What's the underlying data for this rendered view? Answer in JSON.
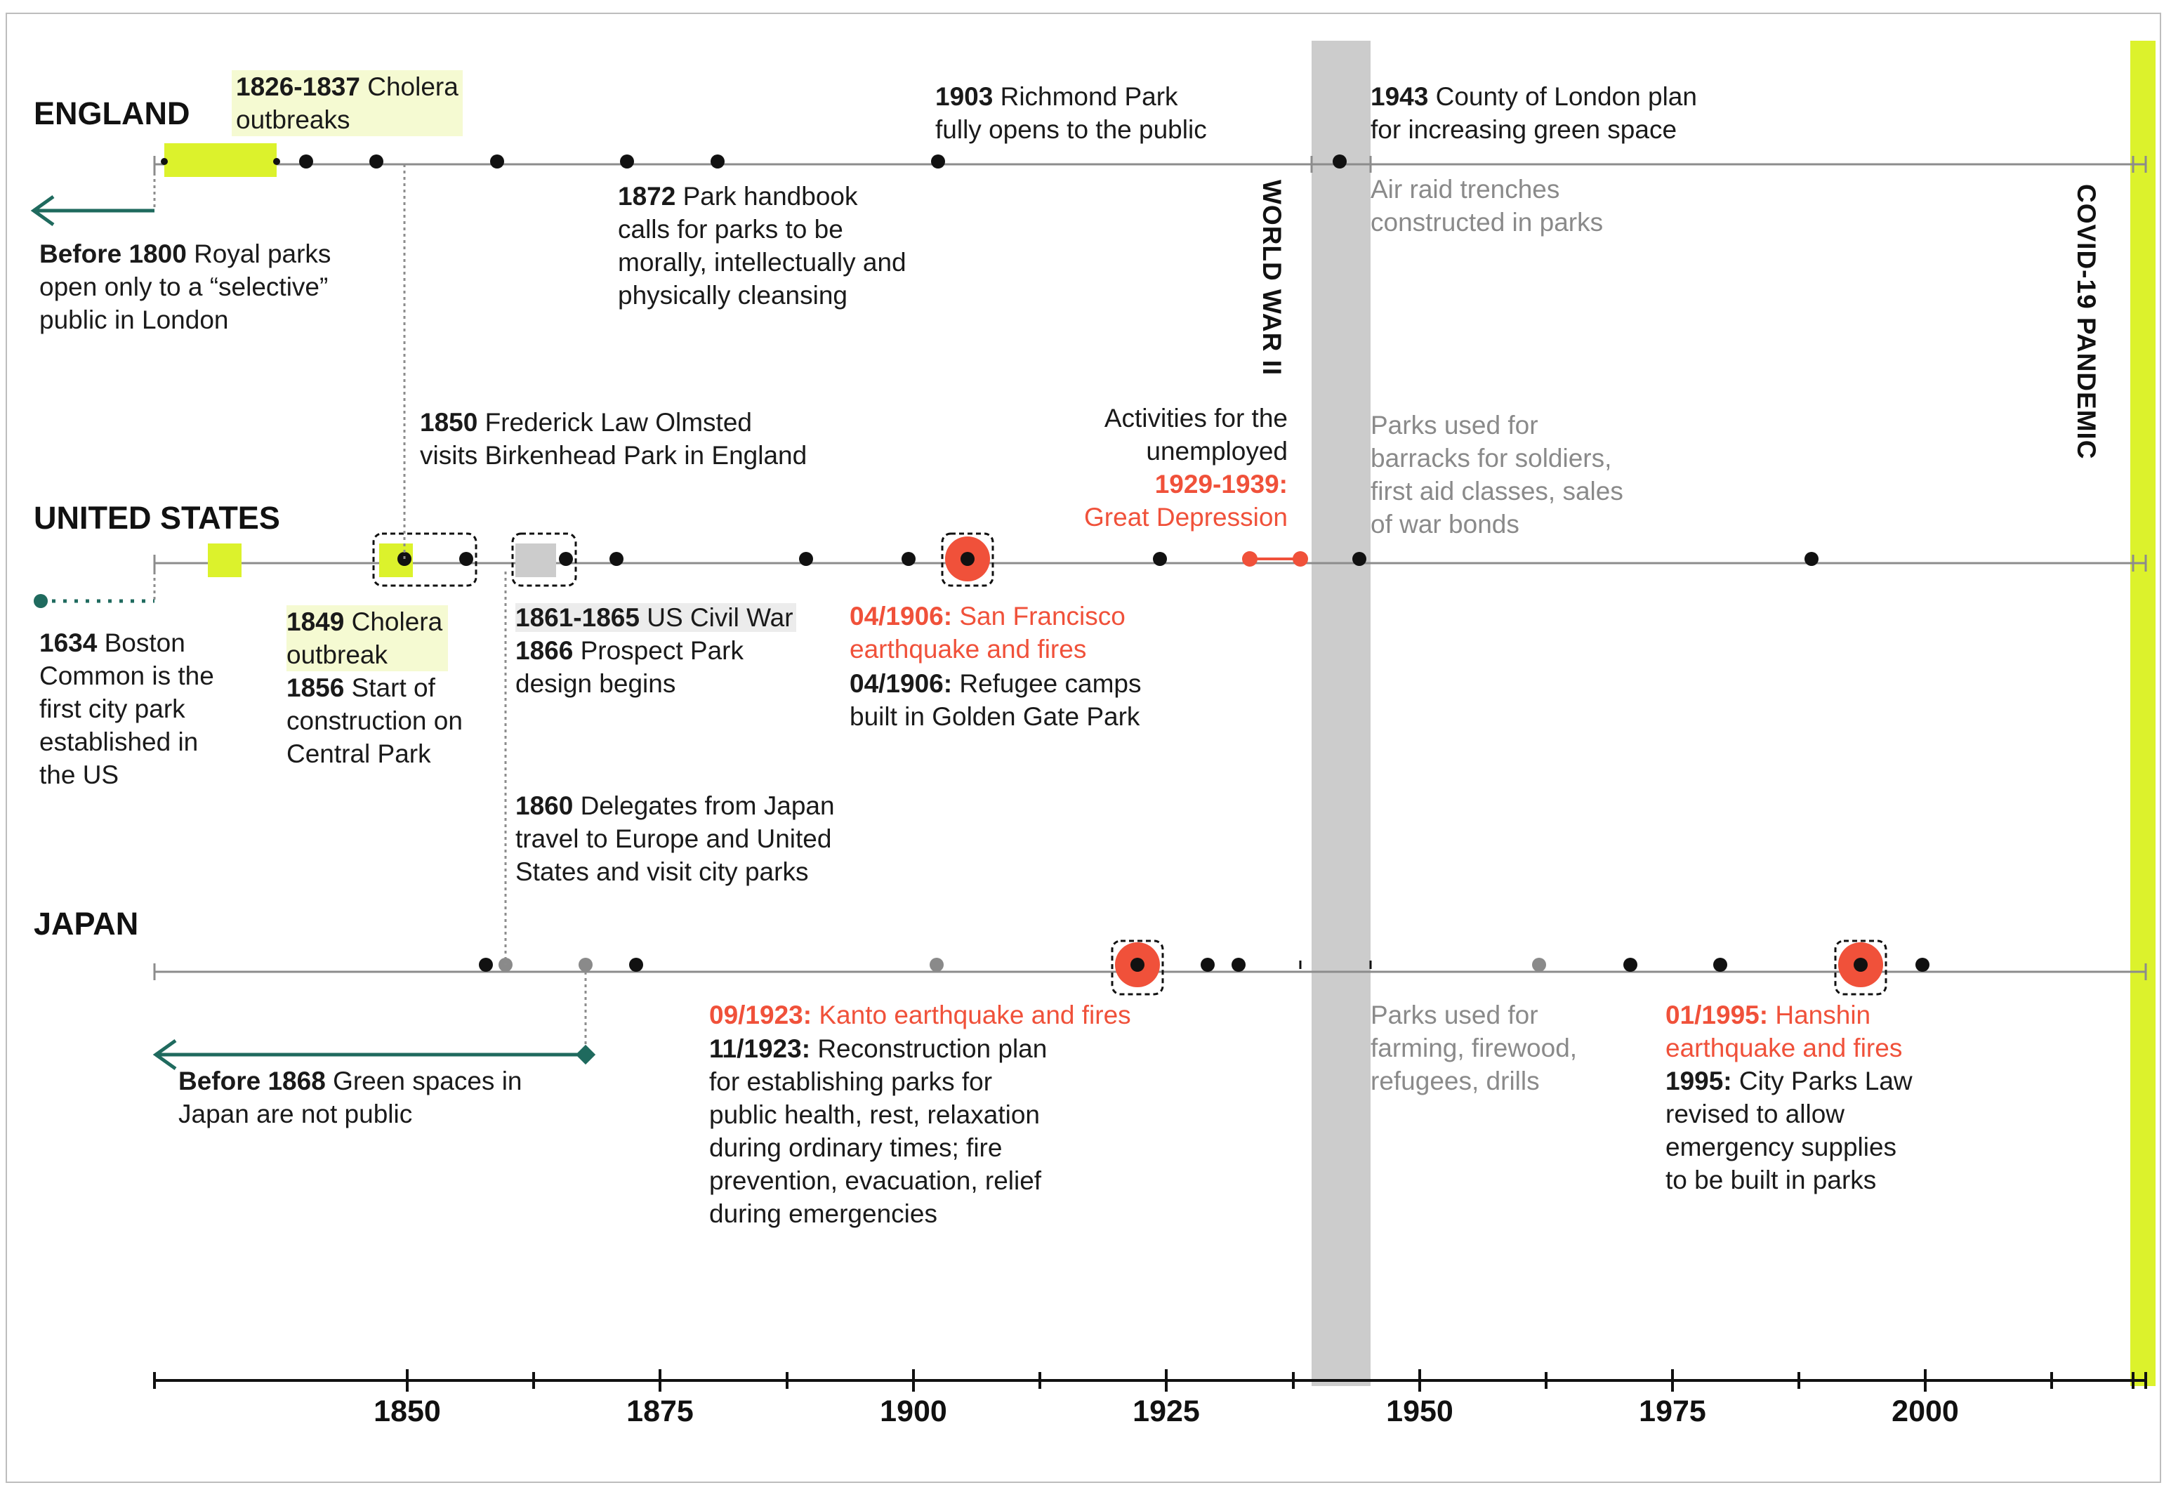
{
  "countries": [
    "ENGLAND",
    "UNITED STATES",
    "JAPAN"
  ],
  "axis": {
    "ticks": [
      "1850",
      "1875",
      "1900",
      "1925",
      "1950",
      "1975",
      "2000"
    ]
  },
  "periods": {
    "ww2": "WORLD WAR II",
    "covid": "COVID-19 PANDEMIC"
  },
  "england": [
    {
      "id": "cholera",
      "year": "1826-1837",
      "text": "Cholera\noutbreaks"
    },
    {
      "id": "before1800",
      "year": "Before 1800",
      "text": "Royal parks\nopen only to a “selective”\npublic in London"
    },
    {
      "id": "richmond",
      "year": "1903",
      "text": "Richmond Park\nfully opens to the public"
    },
    {
      "id": "handbook",
      "year": "1872",
      "text": "Park handbook\ncalls for parks to be\nmorally, intellectually and\nphysically cleansing"
    },
    {
      "id": "london-plan",
      "year": "1943",
      "text": "County of London plan\nfor increasing green space"
    },
    {
      "id": "air-raid",
      "year": "",
      "text": "Air raid trenches\nconstructed in parks"
    }
  ],
  "usa": [
    {
      "id": "olmsted",
      "year": "1850",
      "text": "Frederick Law Olmsted\nvisits Birkenhead Park in England"
    },
    {
      "id": "unemployed",
      "year": "",
      "text": "Activities for the\nunemployed"
    },
    {
      "id": "depression",
      "year": "1929-1939:",
      "text": "Great Depression"
    },
    {
      "id": "barracks",
      "year": "",
      "text": "Parks used for\nbarracks for soldiers,\nfirst aid classes, sales\nof war bonds"
    },
    {
      "id": "boston",
      "year": "1634",
      "text": "Boston\nCommon is the\nfirst city park\nestablished in\nthe US"
    },
    {
      "id": "cholera1849",
      "year": "1849",
      "text": "Cholera\noutbreak"
    },
    {
      "id": "central",
      "year": "1856",
      "text": "Start of\nconstruction on\nCentral Park"
    },
    {
      "id": "civilwar",
      "year": "1861-1865",
      "text": "US Civil War"
    },
    {
      "id": "prospect",
      "year": "1866",
      "text": "Prospect Park\ndesign begins"
    },
    {
      "id": "sf-quake",
      "year": "04/1906:",
      "text": "San Francisco\nearthquake and fires"
    },
    {
      "id": "refugee",
      "year": "04/1906:",
      "text": "Refugee camps\nbuilt in Golden Gate Park"
    },
    {
      "id": "delegates",
      "year": "1860",
      "text": "Delegates from Japan\ntravel to Europe and United\nStates and visit city parks"
    }
  ],
  "japan": [
    {
      "id": "before1868",
      "year": "Before 1868",
      "text": "Green spaces in\nJapan are not public"
    },
    {
      "id": "kanto",
      "year": "09/1923:",
      "text": "Kanto earthquake and fires"
    },
    {
      "id": "reconstruction",
      "year": "11/1923:",
      "text": "Reconstruction plan\nfor establishing parks for\npublic health, rest, relaxation\nduring ordinary times; fire\nprevention, evacuation, relief\nduring emergencies"
    },
    {
      "id": "farming",
      "year": "",
      "text": "Parks used for\nfarming, firewood,\nrefugees, drills"
    },
    {
      "id": "hanshin",
      "year": "01/1995:",
      "text": "Hanshin\nearthquake and fires"
    },
    {
      "id": "parks-law",
      "year": "1995:",
      "text": "City Parks Law\nrevised to allow\nemergency supplies\nto be built in parks"
    }
  ],
  "colors": {
    "accent_lime": "#dcf22c",
    "quake_red": "#f0513a",
    "ww2_gray": "#cccccc",
    "arrow_teal": "#1f6a5e",
    "line_gray": "#8c8c8c"
  }
}
